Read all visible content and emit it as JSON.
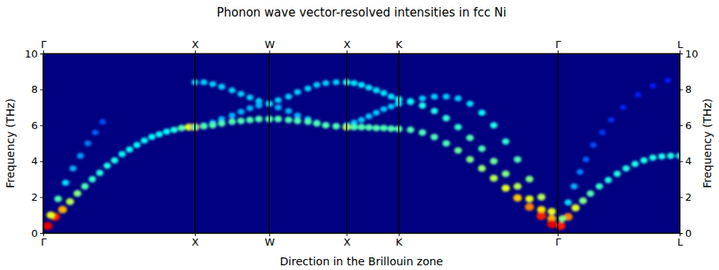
{
  "chart_data": {
    "type": "scatter",
    "title": "Phonon wave vector-resolved intensities in fcc Ni",
    "x_label": "Direction in the Brillouin zone",
    "y_label": "Frequency (THz)",
    "xlim": [
      0,
      4.28
    ],
    "ylim": [
      0,
      10
    ],
    "xticks": [
      {
        "value": 0,
        "label": "Γ"
      },
      {
        "value": 1.02,
        "label": "X"
      },
      {
        "value": 1.52,
        "label": "W"
      },
      {
        "value": 2.04,
        "label": "X"
      },
      {
        "value": 2.39,
        "label": "K"
      },
      {
        "value": 3.46,
        "label": "Γ"
      },
      {
        "value": 4.28,
        "label": "L"
      }
    ],
    "yticks": [
      0,
      2,
      4,
      6,
      8,
      10
    ],
    "grid": "x",
    "series": [
      {
        "x": [
          0.03,
          0.08,
          0.13,
          0.18,
          0.23,
          0.28,
          0.33,
          0.38,
          0.43,
          0.48,
          0.53,
          0.58,
          0.63,
          0.68,
          0.73,
          0.78,
          0.83,
          0.88,
          0.93,
          0.98,
          1.02
        ],
        "values": [
          0.4,
          0.9,
          1.3,
          1.75,
          2.2,
          2.6,
          3.0,
          3.35,
          3.75,
          4.05,
          4.4,
          4.65,
          4.9,
          5.15,
          5.35,
          5.5,
          5.65,
          5.75,
          5.85,
          5.9,
          5.9
        ],
        "intensity": [
          0.9,
          0.85,
          0.7,
          0.55,
          0.5,
          0.45,
          0.42,
          0.4,
          0.4,
          0.4,
          0.38,
          0.38,
          0.38,
          0.38,
          0.38,
          0.38,
          0.38,
          0.4,
          0.45,
          0.6,
          0.85
        ]
      },
      {
        "x": [
          0.05,
          0.1,
          0.15,
          0.2,
          0.25,
          0.3,
          0.35,
          0.4
        ],
        "values": [
          1.0,
          1.9,
          2.8,
          3.6,
          4.3,
          5.0,
          5.6,
          6.2
        ],
        "intensity": [
          0.6,
          0.45,
          0.35,
          0.3,
          0.28,
          0.25,
          0.22,
          0.2
        ]
      },
      {
        "x": [
          1.02,
          1.08,
          1.14,
          1.2,
          1.27,
          1.33,
          1.39,
          1.45,
          1.52
        ],
        "values": [
          8.4,
          8.4,
          8.3,
          8.15,
          7.95,
          7.75,
          7.55,
          7.35,
          7.2
        ],
        "intensity": [
          0.33,
          0.33,
          0.33,
          0.33,
          0.33,
          0.33,
          0.33,
          0.33,
          0.35
        ]
      },
      {
        "x": [
          1.02,
          1.08,
          1.14,
          1.2,
          1.27,
          1.33,
          1.39,
          1.45,
          1.52
        ],
        "values": [
          5.9,
          6.0,
          6.15,
          6.35,
          6.55,
          6.75,
          6.95,
          7.1,
          7.2
        ],
        "intensity": [
          0.3,
          0.3,
          0.3,
          0.3,
          0.3,
          0.3,
          0.3,
          0.3,
          0.35
        ]
      },
      {
        "x": [
          1.02,
          1.08,
          1.14,
          1.2,
          1.27,
          1.33,
          1.39,
          1.45,
          1.52
        ],
        "values": [
          5.9,
          5.95,
          6.0,
          6.1,
          6.2,
          6.25,
          6.3,
          6.35,
          6.35
        ],
        "intensity": [
          0.45,
          0.45,
          0.45,
          0.45,
          0.45,
          0.45,
          0.45,
          0.45,
          0.45
        ]
      },
      {
        "x": [
          1.52,
          1.58,
          1.65,
          1.71,
          1.78,
          1.84,
          1.9,
          1.97,
          2.04
        ],
        "values": [
          7.2,
          7.4,
          7.6,
          7.85,
          8.05,
          8.25,
          8.35,
          8.4,
          8.4
        ],
        "intensity": [
          0.35,
          0.33,
          0.33,
          0.33,
          0.33,
          0.33,
          0.33,
          0.33,
          0.35
        ]
      },
      {
        "x": [
          1.52,
          1.58,
          1.65,
          1.71,
          1.78,
          1.84,
          1.9,
          1.97,
          2.04
        ],
        "values": [
          7.2,
          7.0,
          6.8,
          6.55,
          6.35,
          6.15,
          6.0,
          5.95,
          5.9
        ],
        "intensity": [
          0.35,
          0.3,
          0.3,
          0.3,
          0.3,
          0.3,
          0.3,
          0.3,
          0.3
        ]
      },
      {
        "x": [
          1.52,
          1.58,
          1.65,
          1.71,
          1.78,
          1.84,
          1.9,
          1.97,
          2.04
        ],
        "values": [
          6.35,
          6.35,
          6.3,
          6.25,
          6.2,
          6.1,
          6.0,
          5.95,
          5.9
        ],
        "intensity": [
          0.45,
          0.45,
          0.45,
          0.45,
          0.45,
          0.45,
          0.45,
          0.45,
          0.55
        ]
      },
      {
        "x": [
          2.04,
          2.09,
          2.14,
          2.19,
          2.24,
          2.29,
          2.34,
          2.39
        ],
        "values": [
          8.4,
          8.35,
          8.25,
          8.1,
          7.95,
          7.8,
          7.6,
          7.45
        ],
        "intensity": [
          0.4,
          0.35,
          0.35,
          0.35,
          0.35,
          0.35,
          0.35,
          0.38
        ]
      },
      {
        "x": [
          2.04,
          2.09,
          2.14,
          2.19,
          2.24,
          2.29,
          2.34,
          2.39
        ],
        "values": [
          6.0,
          6.15,
          6.3,
          6.5,
          6.7,
          6.9,
          7.05,
          7.2
        ],
        "intensity": [
          0.35,
          0.32,
          0.32,
          0.32,
          0.32,
          0.32,
          0.32,
          0.35
        ]
      },
      {
        "x": [
          2.04,
          2.09,
          2.14,
          2.19,
          2.24,
          2.29,
          2.34,
          2.39
        ],
        "values": [
          5.9,
          5.9,
          5.9,
          5.88,
          5.85,
          5.85,
          5.82,
          5.8
        ],
        "intensity": [
          0.55,
          0.45,
          0.45,
          0.45,
          0.45,
          0.45,
          0.45,
          0.45
        ]
      },
      {
        "x": [
          2.39,
          2.47,
          2.55,
          2.63,
          2.71,
          2.79,
          2.87,
          2.95,
          3.03,
          3.11,
          3.19,
          3.27,
          3.35,
          3.42
        ],
        "values": [
          7.2,
          7.35,
          7.5,
          7.6,
          7.6,
          7.5,
          7.2,
          6.7,
          6.0,
          5.1,
          4.1,
          3.0,
          2.0,
          1.2
        ],
        "intensity": [
          0.35,
          0.33,
          0.33,
          0.33,
          0.33,
          0.33,
          0.35,
          0.38,
          0.4,
          0.42,
          0.45,
          0.5,
          0.55,
          0.6
        ]
      },
      {
        "x": [
          2.39,
          2.47,
          2.55,
          2.63,
          2.71,
          2.79,
          2.87,
          2.95,
          3.03,
          3.11,
          3.19,
          3.27,
          3.35,
          3.42
        ],
        "values": [
          7.45,
          7.3,
          7.1,
          6.8,
          6.4,
          5.9,
          5.3,
          4.7,
          4.0,
          3.3,
          2.6,
          1.9,
          1.3,
          0.8
        ],
        "intensity": [
          0.38,
          0.38,
          0.4,
          0.4,
          0.42,
          0.42,
          0.45,
          0.45,
          0.48,
          0.5,
          0.55,
          0.6,
          0.65,
          0.7
        ]
      },
      {
        "x": [
          2.39,
          2.47,
          2.55,
          2.63,
          2.71,
          2.79,
          2.87,
          2.95,
          3.03,
          3.11,
          3.19,
          3.27,
          3.35,
          3.42
        ],
        "values": [
          5.8,
          5.75,
          5.6,
          5.35,
          5.0,
          4.6,
          4.1,
          3.6,
          3.05,
          2.5,
          1.95,
          1.45,
          0.95,
          0.5
        ],
        "intensity": [
          0.45,
          0.45,
          0.45,
          0.45,
          0.45,
          0.48,
          0.5,
          0.52,
          0.55,
          0.6,
          0.68,
          0.75,
          0.85,
          0.9
        ]
      },
      {
        "x": [
          3.48,
          3.53,
          3.58,
          3.63,
          3.68,
          3.74,
          3.8,
          3.86,
          3.92,
          3.98,
          4.04,
          4.1,
          4.16,
          4.22,
          4.28
        ],
        "values": [
          0.4,
          0.9,
          1.4,
          1.8,
          2.2,
          2.6,
          2.95,
          3.3,
          3.6,
          3.85,
          4.05,
          4.2,
          4.27,
          4.3,
          4.3
        ],
        "intensity": [
          0.85,
          0.75,
          0.6,
          0.5,
          0.45,
          0.42,
          0.4,
          0.4,
          0.4,
          0.4,
          0.4,
          0.4,
          0.4,
          0.4,
          0.4
        ]
      },
      {
        "x": [
          3.49,
          3.53,
          3.57,
          3.61,
          3.65,
          3.7,
          3.76,
          3.82,
          3.9,
          4.0,
          4.1,
          4.2
        ],
        "values": [
          0.8,
          1.7,
          2.6,
          3.4,
          4.1,
          4.9,
          5.6,
          6.3,
          7.0,
          7.7,
          8.2,
          8.5
        ],
        "intensity": [
          0.5,
          0.35,
          0.3,
          0.25,
          0.22,
          0.2,
          0.18,
          0.17,
          0.16,
          0.15,
          0.15,
          0.15
        ]
      }
    ]
  }
}
